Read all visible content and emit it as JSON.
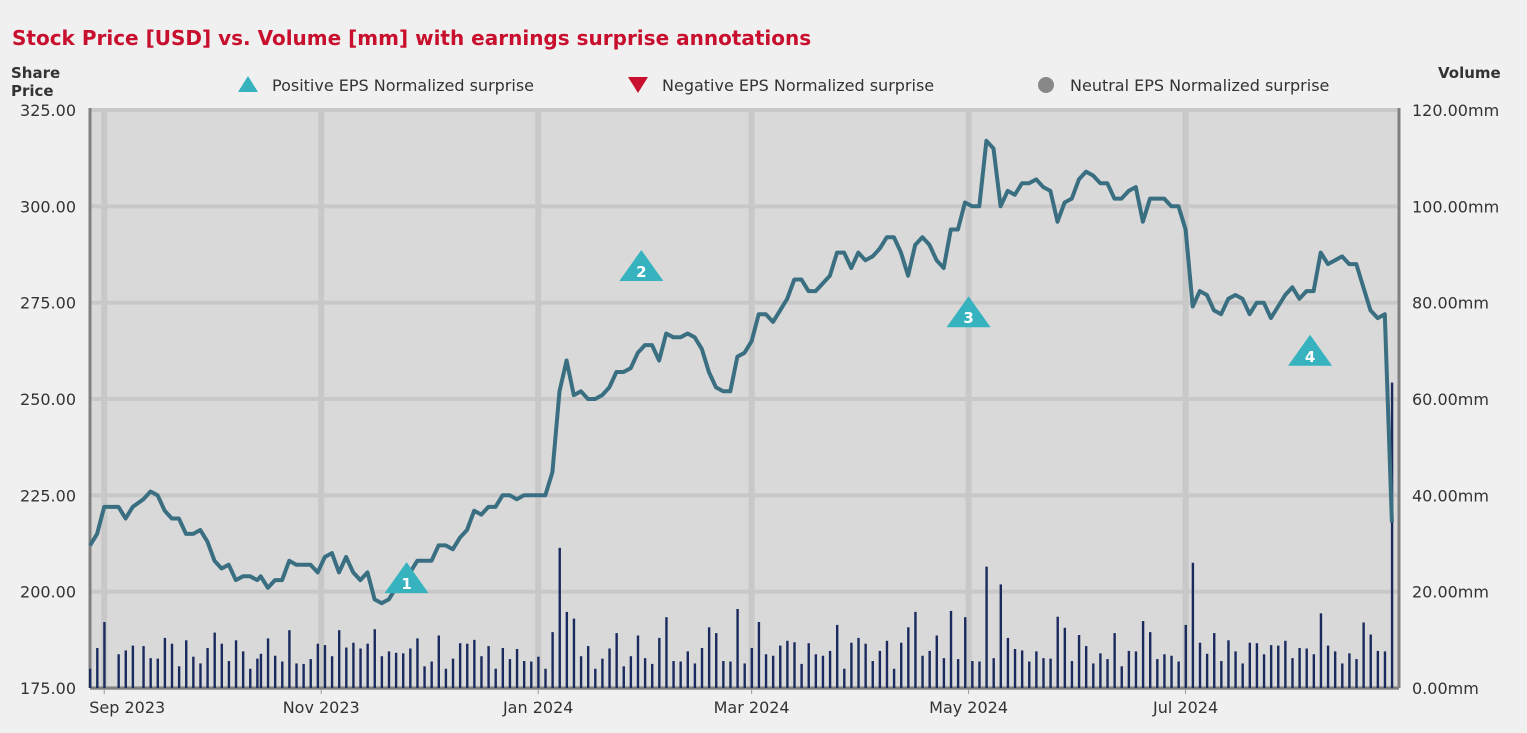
{
  "header": {
    "title": "Stock Price [USD] vs. Volume [mm] with earnings surprise annotations",
    "left_axis_title": "Share Price",
    "right_axis_title": "Volume"
  },
  "legend": [
    {
      "label": "Positive EPS Normalized surprise",
      "shape": "triangle-up",
      "color": "#36b3bf"
    },
    {
      "label": "Negative EPS Normalized surprise",
      "shape": "triangle-down",
      "color": "#c8102e"
    },
    {
      "label": "Neutral EPS Normalized surprise",
      "shape": "circle",
      "color": "#888888"
    }
  ],
  "colors": {
    "price_line": "#3a6f82",
    "volume_bar": "#1a2a5e",
    "plot_bg": "#d9d9d9",
    "grid": "#c8c8c8",
    "title": "#c8102e"
  },
  "chart_data": {
    "type": "line",
    "title": "Stock Price [USD] vs. Volume [mm] with earnings surprise annotations",
    "ylabel": "Share Price",
    "y2label": "Volume",
    "ylim": [
      175,
      325
    ],
    "y2lim": [
      0,
      120
    ],
    "xlim": [
      "2023-08-28",
      "2024-08-30"
    ],
    "y_ticks": [
      "325.00",
      "300.00",
      "275.00",
      "250.00",
      "225.00",
      "200.00",
      "175.00"
    ],
    "y2_ticks": [
      "120.00mm",
      "100.00mm",
      "80.00mm",
      "60.00mm",
      "40.00mm",
      "20.00mm",
      "0.00mm"
    ],
    "x_ticks": [
      {
        "date": "2023-09-01",
        "label": "Sep 2023"
      },
      {
        "date": "2023-11-01",
        "label": "Nov 2023"
      },
      {
        "date": "2024-01-01",
        "label": "Jan 2024"
      },
      {
        "date": "2024-03-01",
        "label": "Mar 2024"
      },
      {
        "date": "2024-05-01",
        "label": "May 2024"
      },
      {
        "date": "2024-07-01",
        "label": "Jul 2024"
      }
    ],
    "grid": true,
    "legend_position": "top",
    "price_series": [
      [
        "2023-08-28",
        212
      ],
      [
        "2023-08-30",
        215
      ],
      [
        "2023-09-01",
        222
      ],
      [
        "2023-09-05",
        222
      ],
      [
        "2023-09-07",
        219
      ],
      [
        "2023-09-09",
        222
      ],
      [
        "2023-09-12",
        224
      ],
      [
        "2023-09-14",
        226
      ],
      [
        "2023-09-16",
        225
      ],
      [
        "2023-09-18",
        221
      ],
      [
        "2023-09-20",
        219
      ],
      [
        "2023-09-22",
        219
      ],
      [
        "2023-09-24",
        215
      ],
      [
        "2023-09-26",
        215
      ],
      [
        "2023-09-28",
        216
      ],
      [
        "2023-09-30",
        213
      ],
      [
        "2023-10-02",
        208
      ],
      [
        "2023-10-04",
        206
      ],
      [
        "2023-10-06",
        207
      ],
      [
        "2023-10-08",
        203
      ],
      [
        "2023-10-10",
        204
      ],
      [
        "2023-10-12",
        204
      ],
      [
        "2023-10-14",
        203
      ],
      [
        "2023-10-15",
        204
      ],
      [
        "2023-10-17",
        201
      ],
      [
        "2023-10-19",
        203
      ],
      [
        "2023-10-21",
        203
      ],
      [
        "2023-10-23",
        208
      ],
      [
        "2023-10-25",
        207
      ],
      [
        "2023-10-27",
        207
      ],
      [
        "2023-10-29",
        207
      ],
      [
        "2023-10-31",
        205
      ],
      [
        "2023-11-02",
        209
      ],
      [
        "2023-11-04",
        210
      ],
      [
        "2023-11-06",
        205
      ],
      [
        "2023-11-08",
        209
      ],
      [
        "2023-11-10",
        205
      ],
      [
        "2023-11-12",
        203
      ],
      [
        "2023-11-14",
        205
      ],
      [
        "2023-11-16",
        198
      ],
      [
        "2023-11-18",
        197
      ],
      [
        "2023-11-20",
        198
      ],
      [
        "2023-11-22",
        201
      ],
      [
        "2023-11-24",
        203
      ],
      [
        "2023-11-26",
        205
      ],
      [
        "2023-11-28",
        208
      ],
      [
        "2023-11-30",
        208
      ],
      [
        "2023-12-02",
        208
      ],
      [
        "2023-12-04",
        212
      ],
      [
        "2023-12-06",
        212
      ],
      [
        "2023-12-08",
        211
      ],
      [
        "2023-12-10",
        214
      ],
      [
        "2023-12-12",
        216
      ],
      [
        "2023-12-14",
        221
      ],
      [
        "2023-12-16",
        220
      ],
      [
        "2023-12-18",
        222
      ],
      [
        "2023-12-20",
        222
      ],
      [
        "2023-12-22",
        225
      ],
      [
        "2023-12-24",
        225
      ],
      [
        "2023-12-26",
        224
      ],
      [
        "2023-12-28",
        225
      ],
      [
        "2023-12-30",
        225
      ],
      [
        "2024-01-01",
        225
      ],
      [
        "2024-01-03",
        225
      ],
      [
        "2024-01-05",
        231
      ],
      [
        "2024-01-07",
        252
      ],
      [
        "2024-01-09",
        260
      ],
      [
        "2024-01-11",
        251
      ],
      [
        "2024-01-13",
        252
      ],
      [
        "2024-01-15",
        250
      ],
      [
        "2024-01-17",
        250
      ],
      [
        "2024-01-19",
        251
      ],
      [
        "2024-01-21",
        253
      ],
      [
        "2024-01-23",
        257
      ],
      [
        "2024-01-25",
        257
      ],
      [
        "2024-01-27",
        258
      ],
      [
        "2024-01-29",
        262
      ],
      [
        "2024-01-31",
        264
      ],
      [
        "2024-02-02",
        264
      ],
      [
        "2024-02-04",
        260
      ],
      [
        "2024-02-06",
        267
      ],
      [
        "2024-02-08",
        266
      ],
      [
        "2024-02-10",
        266
      ],
      [
        "2024-02-12",
        267
      ],
      [
        "2024-02-14",
        266
      ],
      [
        "2024-02-16",
        263
      ],
      [
        "2024-02-18",
        257
      ],
      [
        "2024-02-20",
        253
      ],
      [
        "2024-02-22",
        252
      ],
      [
        "2024-02-24",
        252
      ],
      [
        "2024-02-26",
        261
      ],
      [
        "2024-02-28",
        262
      ],
      [
        "2024-03-01",
        265
      ],
      [
        "2024-03-03",
        272
      ],
      [
        "2024-03-05",
        272
      ],
      [
        "2024-03-07",
        270
      ],
      [
        "2024-03-09",
        273
      ],
      [
        "2024-03-11",
        276
      ],
      [
        "2024-03-13",
        281
      ],
      [
        "2024-03-15",
        281
      ],
      [
        "2024-03-17",
        278
      ],
      [
        "2024-03-19",
        278
      ],
      [
        "2024-03-21",
        280
      ],
      [
        "2024-03-23",
        282
      ],
      [
        "2024-03-25",
        288
      ],
      [
        "2024-03-27",
        288
      ],
      [
        "2024-03-29",
        284
      ],
      [
        "2024-03-31",
        288
      ],
      [
        "2024-04-02",
        286
      ],
      [
        "2024-04-04",
        287
      ],
      [
        "2024-04-06",
        289
      ],
      [
        "2024-04-08",
        292
      ],
      [
        "2024-04-10",
        292
      ],
      [
        "2024-04-12",
        288
      ],
      [
        "2024-04-14",
        282
      ],
      [
        "2024-04-16",
        290
      ],
      [
        "2024-04-18",
        292
      ],
      [
        "2024-04-20",
        290
      ],
      [
        "2024-04-22",
        286
      ],
      [
        "2024-04-24",
        284
      ],
      [
        "2024-04-26",
        294
      ],
      [
        "2024-04-28",
        294
      ],
      [
        "2024-04-30",
        301
      ],
      [
        "2024-05-02",
        300
      ],
      [
        "2024-05-04",
        300
      ],
      [
        "2024-05-06",
        317
      ],
      [
        "2024-05-08",
        315
      ],
      [
        "2024-05-10",
        300
      ],
      [
        "2024-05-12",
        304
      ],
      [
        "2024-05-14",
        303
      ],
      [
        "2024-05-16",
        306
      ],
      [
        "2024-05-18",
        306
      ],
      [
        "2024-05-20",
        307
      ],
      [
        "2024-05-22",
        305
      ],
      [
        "2024-05-24",
        304
      ],
      [
        "2024-05-26",
        296
      ],
      [
        "2024-05-28",
        301
      ],
      [
        "2024-05-30",
        302
      ],
      [
        "2024-06-01",
        307
      ],
      [
        "2024-06-03",
        309
      ],
      [
        "2024-06-05",
        308
      ],
      [
        "2024-06-07",
        306
      ],
      [
        "2024-06-09",
        306
      ],
      [
        "2024-06-11",
        302
      ],
      [
        "2024-06-13",
        302
      ],
      [
        "2024-06-15",
        304
      ],
      [
        "2024-06-17",
        305
      ],
      [
        "2024-06-19",
        296
      ],
      [
        "2024-06-21",
        302
      ],
      [
        "2024-06-23",
        302
      ],
      [
        "2024-06-25",
        302
      ],
      [
        "2024-06-27",
        300
      ],
      [
        "2024-06-29",
        300
      ],
      [
        "2024-07-01",
        294
      ],
      [
        "2024-07-03",
        274
      ],
      [
        "2024-07-05",
        278
      ],
      [
        "2024-07-07",
        277
      ],
      [
        "2024-07-09",
        273
      ],
      [
        "2024-07-11",
        272
      ],
      [
        "2024-07-13",
        276
      ],
      [
        "2024-07-15",
        277
      ],
      [
        "2024-07-17",
        276
      ],
      [
        "2024-07-19",
        272
      ],
      [
        "2024-07-21",
        275
      ],
      [
        "2024-07-23",
        275
      ],
      [
        "2024-07-25",
        271
      ],
      [
        "2024-07-27",
        274
      ],
      [
        "2024-07-29",
        277
      ],
      [
        "2024-07-31",
        279
      ],
      [
        "2024-08-02",
        276
      ],
      [
        "2024-08-04",
        278
      ],
      [
        "2024-08-06",
        278
      ],
      [
        "2024-08-08",
        288
      ],
      [
        "2024-08-10",
        285
      ],
      [
        "2024-08-12",
        286
      ],
      [
        "2024-08-14",
        287
      ],
      [
        "2024-08-16",
        285
      ],
      [
        "2024-08-18",
        285
      ],
      [
        "2024-08-20",
        279
      ],
      [
        "2024-08-22",
        273
      ],
      [
        "2024-08-24",
        271
      ],
      [
        "2024-08-26",
        272
      ],
      [
        "2024-08-28",
        218
      ]
    ],
    "price_series_note": "",
    "annotations": [
      {
        "label": "1",
        "type": "positive",
        "date": "2023-11-25",
        "price": 203
      },
      {
        "label": "2",
        "type": "positive",
        "date": "2024-01-30",
        "price": 284
      },
      {
        "label": "3",
        "type": "positive",
        "date": "2024-05-01",
        "price": 272
      },
      {
        "label": "4",
        "type": "positive",
        "date": "2024-08-05",
        "price": 262
      }
    ]
  }
}
